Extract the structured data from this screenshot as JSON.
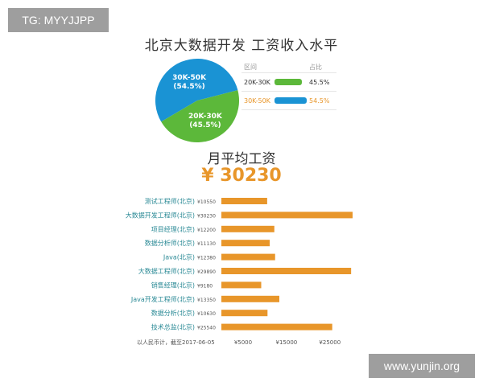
{
  "watermarks": {
    "top_left": "TG: MYYJJPP",
    "bottom_right": "www.yunjin.org"
  },
  "title": "北京大数据开发 工资收入水平",
  "colors": {
    "orange": "#e8962a",
    "green": "#5cb83a",
    "blue": "#1a93d4",
    "job_label": "#2b8a96"
  },
  "chart_data": [
    {
      "type": "pie",
      "title": "北京大数据开发 工资收入水平",
      "legend_headers": [
        "区间",
        "占比"
      ],
      "slices": [
        {
          "label": "30K-50K",
          "value": 54.5,
          "display": "54.5%",
          "color": "#1a93d4",
          "highlight": true
        },
        {
          "label": "20K-30K",
          "value": 45.5,
          "display": "45.5%",
          "color": "#5cb83a",
          "highlight": false
        }
      ],
      "legend_order": [
        1,
        0
      ]
    },
    {
      "type": "bar",
      "orientation": "horizontal",
      "title": "月平均工资",
      "headline_value": "¥ 30230",
      "categories": [
        "测试工程师(北京)",
        "大数据开发工程师(北京)",
        "项目经理(北京)",
        "数据分析师(北京)",
        "Java(北京)",
        "大数据工程师(北京)",
        "销售经理(北京)",
        "Java开发工程师(北京)",
        "数据分析(北京)",
        "技术总监(北京)"
      ],
      "value_labels": [
        "¥10550",
        "¥30230",
        "¥12200",
        "¥11130",
        "¥12380",
        "¥29890",
        "¥9180",
        "¥13350",
        "¥10630",
        "¥25540"
      ],
      "values": [
        10550,
        30230,
        12200,
        11130,
        12380,
        29890,
        9180,
        13350,
        10630,
        25540
      ],
      "xticks": [
        5000,
        15000,
        25000
      ],
      "xtick_labels": [
        "¥5000",
        "¥15000",
        "¥25000"
      ],
      "footnote": "以人民币计，截至2017-06-05",
      "color": "#e8962a"
    }
  ]
}
